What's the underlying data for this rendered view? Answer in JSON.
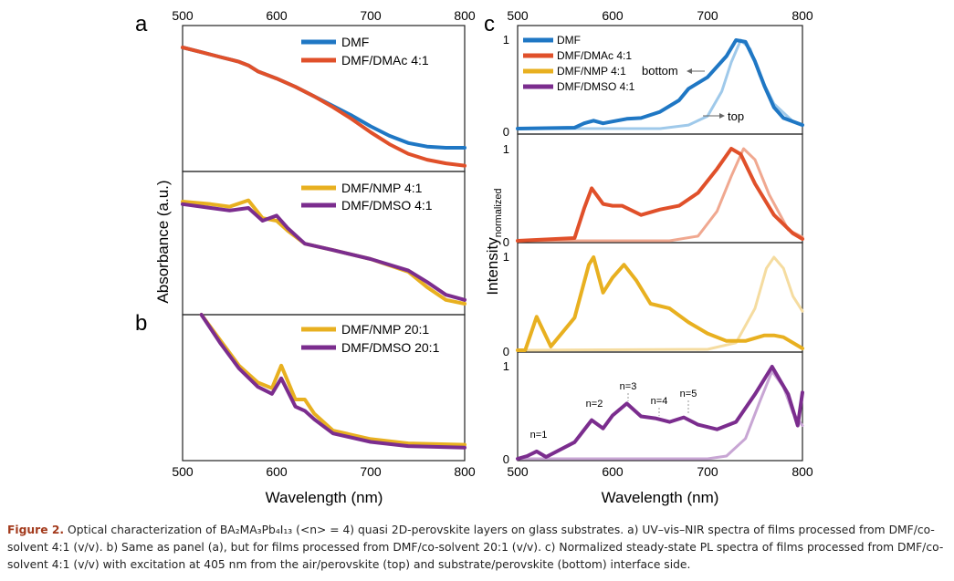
{
  "panel_labels": {
    "a": "a",
    "b": "b",
    "c": "c"
  },
  "left": {
    "ylabel": "Absorbance (a.u.)",
    "xlabel": "Wavelength (nm)",
    "xticks": [
      "500",
      "600",
      "700",
      "800"
    ]
  },
  "right": {
    "ylabel_main": "Intensity",
    "ylabel_sub": "normalized",
    "xlabel": "Wavelength (nm)",
    "xticks": [
      "500",
      "600",
      "700",
      "800"
    ],
    "ytick_zero": "0",
    "ytick_one": "1",
    "annotations": {
      "bottom": "bottom",
      "top": "top"
    },
    "peak_labels": [
      "n=1",
      "n=2",
      "n=3",
      "n=4",
      "n=5"
    ]
  },
  "caption": {
    "label": "Figure 2.",
    "text": "Optical characterization of BA₂MA₃Pb₄I₁₃ (<n> = 4) quasi 2D-perovskite layers on glass substrates. a) UV–vis–NIR spectra of films processed from DMF/co-solvent 4:1 (v/v). b) Same as panel (a), but for films processed from DMF/co-solvent 20:1 (v/v). c) Normalized steady-state PL spectra of films processed from DMF/co-solvent 4:1 (v/v) with excitation at 405 nm from the air/perovskite (top) and substrate/perovskite (bottom) interface side."
  },
  "colors": {
    "DMF": "#1f77c4",
    "DMAc": "#e0502a",
    "NMP": "#e8b020",
    "DMSO": "#7b2d8e"
  },
  "chart_data": [
    {
      "type": "line",
      "panel": "a-top",
      "xlim": [
        500,
        800
      ],
      "series": [
        {
          "name": "DMF",
          "color": "#1f77c4",
          "x": [
            500,
            520,
            540,
            560,
            570,
            580,
            600,
            620,
            640,
            660,
            680,
            700,
            720,
            740,
            760,
            780,
            800
          ],
          "y": [
            1.0,
            0.96,
            0.92,
            0.88,
            0.85,
            0.8,
            0.74,
            0.67,
            0.59,
            0.51,
            0.43,
            0.34,
            0.26,
            0.2,
            0.17,
            0.16,
            0.16
          ]
        },
        {
          "name": "DMF/DMAc 4:1",
          "color": "#e0502a",
          "x": [
            500,
            520,
            540,
            560,
            570,
            580,
            600,
            620,
            640,
            660,
            680,
            700,
            720,
            740,
            760,
            780,
            800
          ],
          "y": [
            1.0,
            0.96,
            0.92,
            0.88,
            0.85,
            0.8,
            0.74,
            0.67,
            0.59,
            0.5,
            0.4,
            0.29,
            0.19,
            0.11,
            0.06,
            0.03,
            0.01
          ]
        }
      ]
    },
    {
      "type": "line",
      "panel": "a-bottom",
      "xlim": [
        500,
        800
      ],
      "series": [
        {
          "name": "DMF/NMP 4:1",
          "color": "#e8b020",
          "x": [
            500,
            530,
            550,
            570,
            585,
            600,
            612,
            630,
            660,
            700,
            740,
            760,
            780,
            800
          ],
          "y": [
            0.85,
            0.83,
            0.81,
            0.86,
            0.72,
            0.7,
            0.62,
            0.52,
            0.47,
            0.4,
            0.3,
            0.18,
            0.08,
            0.05
          ]
        },
        {
          "name": "DMF/DMSO 4:1",
          "color": "#7b2d8e",
          "x": [
            500,
            530,
            550,
            570,
            585,
            600,
            612,
            630,
            660,
            700,
            740,
            760,
            780,
            800
          ],
          "y": [
            0.83,
            0.8,
            0.78,
            0.8,
            0.7,
            0.74,
            0.64,
            0.52,
            0.47,
            0.4,
            0.31,
            0.22,
            0.12,
            0.08
          ]
        }
      ]
    },
    {
      "type": "line",
      "panel": "b",
      "xlim": [
        500,
        800
      ],
      "series": [
        {
          "name": "DMF/NMP 20:1",
          "color": "#e8b020",
          "x": [
            520,
            540,
            560,
            580,
            595,
            605,
            620,
            630,
            640,
            660,
            700,
            740,
            800
          ],
          "y": [
            1.0,
            0.82,
            0.64,
            0.52,
            0.48,
            0.64,
            0.4,
            0.4,
            0.3,
            0.18,
            0.12,
            0.09,
            0.08
          ]
        },
        {
          "name": "DMF/DMSO 20:1",
          "color": "#7b2d8e",
          "x": [
            520,
            540,
            560,
            580,
            595,
            605,
            620,
            630,
            640,
            660,
            700,
            740,
            800
          ],
          "y": [
            1.0,
            0.8,
            0.62,
            0.49,
            0.44,
            0.55,
            0.35,
            0.32,
            0.26,
            0.16,
            0.1,
            0.07,
            0.06
          ]
        }
      ]
    },
    {
      "type": "line",
      "panel": "c1",
      "xlim": [
        500,
        800
      ],
      "ylim": [
        0,
        1
      ],
      "series": [
        {
          "name": "DMF",
          "color": "#1f77c4",
          "x": [
            500,
            560,
            570,
            580,
            590,
            600,
            615,
            630,
            650,
            670,
            680,
            700,
            720,
            730,
            740,
            750,
            760,
            770,
            780,
            800
          ],
          "y": [
            0,
            0.01,
            0.06,
            0.09,
            0.06,
            0.08,
            0.11,
            0.12,
            0.19,
            0.32,
            0.45,
            0.58,
            0.82,
            1.0,
            0.98,
            0.76,
            0.48,
            0.24,
            0.12,
            0.04
          ]
        },
        {
          "name": "top",
          "color": "#9fc9ea",
          "x": [
            500,
            650,
            680,
            700,
            715,
            725,
            735,
            745,
            755,
            770,
            790,
            800
          ],
          "y": [
            0,
            0.0,
            0.04,
            0.14,
            0.42,
            0.75,
            1.0,
            0.9,
            0.6,
            0.28,
            0.08,
            0.04
          ]
        }
      ]
    },
    {
      "type": "line",
      "panel": "c2",
      "xlim": [
        500,
        800
      ],
      "ylim": [
        0,
        1
      ],
      "series": [
        {
          "name": "DMF/DMAc 4:1",
          "color": "#e0502a",
          "x": [
            500,
            560,
            570,
            578,
            590,
            600,
            610,
            630,
            650,
            670,
            690,
            710,
            725,
            735,
            750,
            770,
            790,
            800
          ],
          "y": [
            0,
            0.03,
            0.35,
            0.57,
            0.4,
            0.38,
            0.38,
            0.28,
            0.34,
            0.38,
            0.52,
            0.78,
            1.0,
            0.94,
            0.62,
            0.28,
            0.08,
            0.02
          ]
        },
        {
          "name": "top",
          "color": "#f0a890",
          "x": [
            500,
            660,
            690,
            710,
            725,
            738,
            750,
            765,
            785,
            800
          ],
          "y": [
            0,
            0,
            0.05,
            0.32,
            0.7,
            1.0,
            0.88,
            0.5,
            0.12,
            0.04
          ]
        }
      ]
    },
    {
      "type": "line",
      "panel": "c3",
      "xlim": [
        500,
        800
      ],
      "ylim": [
        0,
        1
      ],
      "series": [
        {
          "name": "DMF/NMP 4:1",
          "color": "#e8b020",
          "x": [
            500,
            508,
            520,
            535,
            560,
            575,
            580,
            590,
            600,
            612,
            625,
            640,
            660,
            680,
            700,
            720,
            740,
            760,
            770,
            780,
            800
          ],
          "y": [
            0,
            0.0,
            0.36,
            0.04,
            0.35,
            0.92,
            1.0,
            0.62,
            0.78,
            0.92,
            0.75,
            0.5,
            0.45,
            0.3,
            0.18,
            0.1,
            0.1,
            0.16,
            0.16,
            0.14,
            0.02
          ]
        },
        {
          "name": "top",
          "color": "#f5dca0",
          "x": [
            500,
            700,
            730,
            750,
            762,
            770,
            780,
            790,
            800
          ],
          "y": [
            0,
            0.01,
            0.08,
            0.45,
            0.88,
            1.0,
            0.88,
            0.58,
            0.42
          ]
        }
      ]
    },
    {
      "type": "line",
      "panel": "c4",
      "xlim": [
        500,
        800
      ],
      "ylim": [
        0,
        1
      ],
      "series": [
        {
          "name": "DMF/DMSO 4:1",
          "color": "#7b2d8e",
          "x": [
            500,
            510,
            520,
            530,
            560,
            578,
            590,
            600,
            615,
            630,
            645,
            660,
            675,
            690,
            710,
            730,
            750,
            768,
            785,
            795,
            800
          ],
          "y": [
            0,
            0.03,
            0.08,
            0.02,
            0.18,
            0.42,
            0.33,
            0.47,
            0.6,
            0.46,
            0.44,
            0.4,
            0.45,
            0.37,
            0.32,
            0.4,
            0.7,
            1.0,
            0.7,
            0.36,
            0.72
          ]
        },
        {
          "name": "top",
          "color": "#c8a6d4",
          "x": [
            500,
            700,
            720,
            740,
            755,
            768,
            780,
            790,
            800
          ],
          "y": [
            0,
            0.0,
            0.03,
            0.22,
            0.62,
            0.95,
            0.78,
            0.5,
            0.36
          ]
        }
      ]
    }
  ]
}
